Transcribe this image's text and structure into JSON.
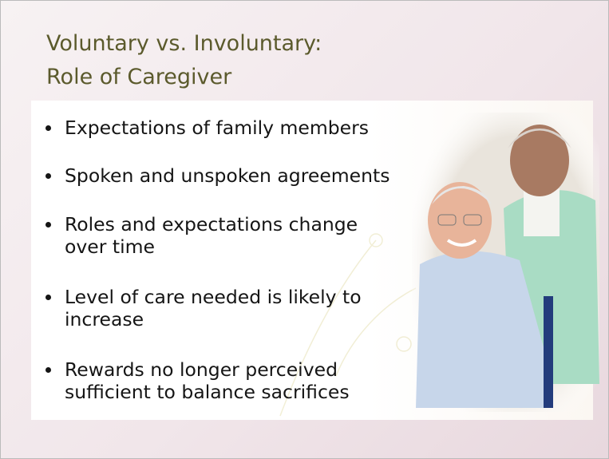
{
  "slide": {
    "title": [
      "Voluntary vs. Involuntary:",
      "Role of Caregiver"
    ],
    "bullets": [
      [
        "Expectations of family members"
      ],
      [
        "Spoken and unspoken agreements"
      ],
      [
        "Roles and expectations change",
        "over time"
      ],
      [
        "Level of care needed is likely to",
        "increase"
      ],
      [
        "Rewards no longer perceived",
        "sufficient to balance sacrifices"
      ]
    ]
  }
}
